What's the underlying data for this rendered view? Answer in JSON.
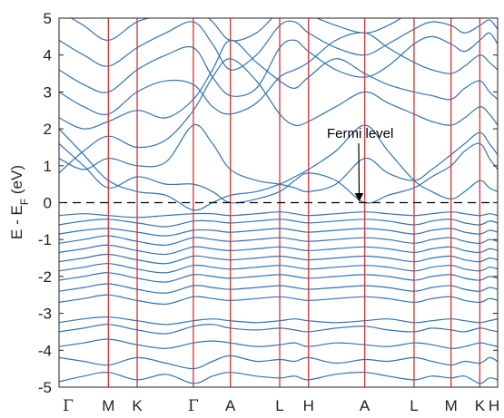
{
  "chart_data": {
    "type": "line",
    "title": "",
    "ylabel": {
      "main": "E - E",
      "subscript": "F",
      "units": " (eV)"
    },
    "ylim": [
      -5,
      5
    ],
    "yticks": [
      5,
      4,
      3,
      2,
      1,
      0,
      -1,
      -2,
      -3,
      -4,
      -5
    ],
    "xlim": [
      0,
      16
    ],
    "kpoints": [
      {
        "label": "Γ",
        "x": 0
      },
      {
        "label": "M",
        "x": 1.8
      },
      {
        "label": "K",
        "x": 2.85
      },
      {
        "label": "Γ",
        "x": 4.9
      },
      {
        "label": "A",
        "x": 6.25
      },
      {
        "label": "L",
        "x": 8.05
      },
      {
        "label": "H",
        "x": 9.1
      },
      {
        "label": "A",
        "x": 11.15
      },
      {
        "label": "L",
        "x": 12.95
      },
      {
        "label": "M",
        "x": 14.3
      },
      {
        "label": "K",
        "x": 15.35
      },
      {
        "label": "H",
        "x": 16
      }
    ],
    "fermi_level": 0,
    "annotation": {
      "text": "Fermi level",
      "arrow_to": {
        "x": 10.95,
        "y": 0.05
      }
    },
    "colors": {
      "bands": "#2f74b5",
      "kpath_lines": "#e03030",
      "fermi_line": "#000000"
    },
    "bands": [
      {
        "x": [
          0,
          0.9,
          1.8,
          2.85,
          3.9,
          4.9,
          5.6,
          6.25,
          7.2,
          8.05,
          8.6,
          9.1,
          10.1,
          11.15,
          12.0,
          12.95,
          13.6,
          14.3,
          14.8,
          15.35,
          15.7,
          16
        ],
        "y": [
          -4.85,
          -4.7,
          -4.6,
          -4.8,
          -4.65,
          -4.9,
          -4.7,
          -4.6,
          -4.7,
          -4.75,
          -4.7,
          -4.8,
          -4.65,
          -4.6,
          -4.7,
          -4.8,
          -4.7,
          -4.75,
          -4.7,
          -4.9,
          -4.75,
          -4.8
        ]
      },
      {
        "x": [
          0,
          0.9,
          1.8,
          2.85,
          3.9,
          4.9,
          5.6,
          6.25,
          7.2,
          8.05,
          8.6,
          9.1,
          10.1,
          11.15,
          12.0,
          12.95,
          13.6,
          14.3,
          14.8,
          15.35,
          15.7,
          16
        ],
        "y": [
          -4.2,
          -4.3,
          -4.4,
          -4.2,
          -4.35,
          -4.5,
          -4.3,
          -4.15,
          -4.3,
          -4.25,
          -4.3,
          -4.2,
          -4.35,
          -4.25,
          -4.3,
          -4.2,
          -4.3,
          -4.4,
          -4.3,
          -4.35,
          -4.2,
          -4.3
        ]
      },
      {
        "x": [
          0,
          0.9,
          1.8,
          2.85,
          3.9,
          4.9,
          5.6,
          6.25,
          7.2,
          8.05,
          8.6,
          9.1,
          10.1,
          11.15,
          12.0,
          12.95,
          13.6,
          14.3,
          14.8,
          15.35,
          15.7,
          16
        ],
        "y": [
          -3.9,
          -3.8,
          -3.7,
          -3.85,
          -3.95,
          -3.8,
          -3.75,
          -3.8,
          -3.9,
          -3.85,
          -3.8,
          -3.9,
          -3.8,
          -3.85,
          -3.9,
          -3.8,
          -3.85,
          -3.95,
          -3.9,
          -3.8,
          -3.85,
          -3.9
        ]
      },
      {
        "x": [
          0,
          0.9,
          1.8,
          2.85,
          3.9,
          4.9,
          5.6,
          6.25,
          7.2,
          8.05,
          8.6,
          9.1,
          10.1,
          11.15,
          12.0,
          12.95,
          13.6,
          14.3,
          14.8,
          15.35,
          15.7,
          16
        ],
        "y": [
          -3.5,
          -3.4,
          -3.3,
          -3.45,
          -3.55,
          -3.35,
          -3.3,
          -3.4,
          -3.45,
          -3.4,
          -3.45,
          -3.5,
          -3.4,
          -3.35,
          -3.45,
          -3.5,
          -3.4,
          -3.45,
          -3.5,
          -3.4,
          -3.45,
          -3.5
        ]
      },
      {
        "x": [
          0,
          0.9,
          1.8,
          2.85,
          3.9,
          4.9,
          5.6,
          6.25,
          7.2,
          8.05,
          8.6,
          9.1,
          10.1,
          11.15,
          12.0,
          12.95,
          13.6,
          14.3,
          14.8,
          15.35,
          15.7,
          16
        ],
        "y": [
          -3.25,
          -3.15,
          -3.1,
          -3.2,
          -3.3,
          -3.2,
          -3.15,
          -3.2,
          -3.25,
          -3.2,
          -3.15,
          -3.2,
          -3.25,
          -3.2,
          -3.15,
          -3.25,
          -3.2,
          -3.15,
          -3.2,
          -3.25,
          -3.2,
          -3.15
        ]
      },
      {
        "x": [
          0,
          0.9,
          1.8,
          2.85,
          3.9,
          4.9,
          5.6,
          6.25,
          7.2,
          8.05,
          8.6,
          9.1,
          10.1,
          11.15,
          12.0,
          12.95,
          13.6,
          14.3,
          14.8,
          15.35,
          15.7,
          16
        ],
        "y": [
          -2.7,
          -2.6,
          -2.5,
          -2.65,
          -2.75,
          -2.55,
          -2.6,
          -2.65,
          -2.6,
          -2.55,
          -2.6,
          -2.65,
          -2.6,
          -2.55,
          -2.6,
          -2.7,
          -2.6,
          -2.55,
          -2.65,
          -2.7,
          -2.6,
          -2.65
        ]
      },
      {
        "x": [
          0,
          0.9,
          1.8,
          2.85,
          3.9,
          4.9,
          5.6,
          6.25,
          7.2,
          8.05,
          8.6,
          9.1,
          10.1,
          11.15,
          12.0,
          12.95,
          13.6,
          14.3,
          14.8,
          15.35,
          15.7,
          16
        ],
        "y": [
          -2.4,
          -2.3,
          -2.2,
          -2.35,
          -2.45,
          -2.25,
          -2.3,
          -2.35,
          -2.3,
          -2.25,
          -2.3,
          -2.35,
          -2.3,
          -2.25,
          -2.3,
          -2.4,
          -2.3,
          -2.25,
          -2.35,
          -2.4,
          -2.3,
          -2.35
        ]
      },
      {
        "x": [
          0,
          0.9,
          1.8,
          2.85,
          3.9,
          4.9,
          5.6,
          6.25,
          7.2,
          8.05,
          8.6,
          9.1,
          10.1,
          11.15,
          12.0,
          12.95,
          13.6,
          14.3,
          14.8,
          15.35,
          15.7,
          16
        ],
        "y": [
          -2.1,
          -2.0,
          -1.9,
          -2.05,
          -2.15,
          -1.95,
          -2.0,
          -2.05,
          -2.0,
          -1.95,
          -2.0,
          -2.05,
          -2.0,
          -1.95,
          -2.0,
          -2.1,
          -2.0,
          -1.95,
          -2.05,
          -2.1,
          -2.0,
          -2.05
        ]
      },
      {
        "x": [
          0,
          0.9,
          1.8,
          2.85,
          3.9,
          4.9,
          5.6,
          6.25,
          7.2,
          8.05,
          8.6,
          9.1,
          10.1,
          11.15,
          12.0,
          12.95,
          13.6,
          14.3,
          14.8,
          15.35,
          15.7,
          16
        ],
        "y": [
          -1.85,
          -1.75,
          -1.65,
          -1.8,
          -1.9,
          -1.7,
          -1.75,
          -1.8,
          -1.75,
          -1.7,
          -1.75,
          -1.8,
          -1.75,
          -1.7,
          -1.75,
          -1.85,
          -1.75,
          -1.7,
          -1.8,
          -1.85,
          -1.75,
          -1.8
        ]
      },
      {
        "x": [
          0,
          0.9,
          1.8,
          2.85,
          3.9,
          4.9,
          5.6,
          6.25,
          7.2,
          8.05,
          8.6,
          9.1,
          10.1,
          11.15,
          12.0,
          12.95,
          13.6,
          14.3,
          14.8,
          15.35,
          15.7,
          16
        ],
        "y": [
          -1.6,
          -1.5,
          -1.4,
          -1.55,
          -1.65,
          -1.45,
          -1.5,
          -1.55,
          -1.5,
          -1.45,
          -1.5,
          -1.55,
          -1.5,
          -1.45,
          -1.5,
          -1.6,
          -1.5,
          -1.45,
          -1.55,
          -1.6,
          -1.5,
          -1.55
        ]
      },
      {
        "x": [
          0,
          0.9,
          1.8,
          2.85,
          3.9,
          4.9,
          5.6,
          6.25,
          7.2,
          8.05,
          8.6,
          9.1,
          10.1,
          11.15,
          12.0,
          12.95,
          13.6,
          14.3,
          14.8,
          15.35,
          15.7,
          16
        ],
        "y": [
          -1.35,
          -1.25,
          -1.15,
          -1.3,
          -1.4,
          -1.2,
          -1.25,
          -1.3,
          -1.25,
          -1.2,
          -1.25,
          -1.3,
          -1.25,
          -1.2,
          -1.25,
          -1.35,
          -1.25,
          -1.2,
          -1.3,
          -1.35,
          -1.25,
          -1.3
        ]
      },
      {
        "x": [
          0,
          0.9,
          1.8,
          2.85,
          3.9,
          4.9,
          5.6,
          6.25,
          7.2,
          8.05,
          8.6,
          9.1,
          10.1,
          11.15,
          12.0,
          12.95,
          13.6,
          14.3,
          14.8,
          15.35,
          15.7,
          16
        ],
        "y": [
          -1.1,
          -1.0,
          -0.9,
          -1.05,
          -1.15,
          -0.95,
          -1.0,
          -1.05,
          -1.0,
          -0.95,
          -1.0,
          -1.05,
          -1.0,
          -0.95,
          -1.0,
          -1.1,
          -1.0,
          -0.95,
          -1.05,
          -1.1,
          -1.0,
          -1.05
        ]
      },
      {
        "x": [
          0,
          0.9,
          1.8,
          2.85,
          3.9,
          4.9,
          5.6,
          6.25,
          7.2,
          8.05,
          8.6,
          9.1,
          10.1,
          11.15,
          12.0,
          12.95,
          13.6,
          14.3,
          14.8,
          15.35,
          15.7,
          16
        ],
        "y": [
          -0.85,
          -0.75,
          -0.7,
          -0.8,
          -0.9,
          -0.75,
          -0.75,
          -0.8,
          -0.75,
          -0.7,
          -0.75,
          -0.8,
          -0.75,
          -0.7,
          -0.75,
          -0.85,
          -0.75,
          -0.7,
          -0.8,
          -0.85,
          -0.75,
          -0.8
        ]
      },
      {
        "x": [
          0,
          0.9,
          1.8,
          2.85,
          3.9,
          4.9,
          5.6,
          6.25,
          7.2,
          8.05,
          8.6,
          9.1,
          10.1,
          11.15,
          12.0,
          12.95,
          13.6,
          14.3,
          14.8,
          15.35,
          15.7,
          16
        ],
        "y": [
          -0.6,
          -0.5,
          -0.45,
          -0.55,
          -0.65,
          -0.5,
          -0.5,
          -0.55,
          -0.5,
          -0.45,
          -0.5,
          -0.55,
          -0.5,
          -0.45,
          -0.5,
          -0.6,
          -0.5,
          -0.45,
          -0.55,
          -0.6,
          -0.5,
          -0.55
        ]
      },
      {
        "x": [
          0,
          0.9,
          1.8,
          2.85,
          3.9,
          4.9,
          5.6,
          6.25,
          7.2,
          8.05,
          8.6,
          9.1,
          10.1,
          11.15,
          12.0,
          12.95,
          13.6,
          14.3,
          14.8,
          15.35,
          15.7,
          16
        ],
        "y": [
          -0.35,
          -0.3,
          -0.35,
          -0.4,
          -0.35,
          -0.3,
          -0.3,
          -0.35,
          -0.3,
          -0.25,
          -0.3,
          -0.35,
          -0.3,
          -0.25,
          -0.3,
          -0.35,
          -0.3,
          -0.25,
          -0.3,
          -0.35,
          -0.3,
          -0.35
        ]
      },
      {
        "x": [
          0,
          0.9,
          1.8,
          2.85,
          3.9,
          4.9,
          5.6,
          6.25,
          7.2,
          8.05,
          8.6,
          9.1,
          10.1,
          11.15,
          12.0,
          12.95,
          13.6,
          14.3,
          14.8,
          15.35,
          15.7,
          16
        ],
        "y": [
          2.0,
          1.3,
          0.6,
          0.3,
          0.2,
          -0.2,
          0.0,
          0.2,
          0.3,
          0.5,
          0.7,
          0.9,
          1.4,
          2.1,
          1.4,
          0.6,
          0.3,
          0.1,
          0.3,
          0.6,
          0.4,
          0.3
        ]
      },
      {
        "x": [
          0,
          0.9,
          1.8,
          2.85,
          3.9,
          4.9,
          5.6,
          6.25,
          7.2,
          8.05,
          8.6,
          9.1,
          10.1,
          11.15,
          12.0,
          12.95,
          13.6,
          14.3,
          14.8,
          15.35,
          15.7,
          16
        ],
        "y": [
          1.6,
          1.0,
          0.4,
          0.7,
          0.5,
          0.5,
          0.3,
          0.0,
          0.1,
          0.3,
          0.6,
          0.8,
          0.6,
          0.0,
          0.2,
          0.4,
          0.7,
          1.0,
          1.4,
          1.6,
          1.2,
          0.9
        ]
      },
      {
        "x": [
          0,
          0.9,
          1.8,
          2.85,
          3.9,
          4.9,
          5.6,
          6.25,
          7.2,
          8.05,
          8.6,
          9.1,
          10.1,
          11.15,
          12.0,
          12.95,
          13.6,
          14.3,
          14.8,
          15.35,
          15.7,
          16
        ],
        "y": [
          1.2,
          0.9,
          1.2,
          1.0,
          1.1,
          2.1,
          1.6,
          0.9,
          0.6,
          0.5,
          0.4,
          0.3,
          0.5,
          1.2,
          0.8,
          0.6,
          0.9,
          1.3,
          1.6,
          1.9,
          1.6,
          1.3
        ]
      },
      {
        "x": [
          0,
          0.9,
          1.8,
          2.85,
          3.9,
          4.9,
          5.6,
          6.25,
          7.2,
          8.05,
          8.6,
          9.1,
          10.1,
          11.15,
          12.0,
          12.95,
          13.6,
          14.3,
          14.8,
          15.35,
          15.7,
          16
        ],
        "y": [
          0.8,
          1.4,
          1.8,
          1.5,
          1.7,
          2.5,
          3.4,
          3.9,
          3.3,
          2.4,
          2.1,
          2.2,
          2.6,
          3.0,
          2.7,
          2.4,
          2.2,
          2.1,
          2.3,
          2.6,
          2.4,
          2.1
        ]
      },
      {
        "x": [
          0,
          0.9,
          1.8,
          2.85,
          3.9,
          4.9,
          5.6,
          6.25,
          7.2,
          8.05,
          8.6,
          9.1,
          10.1,
          11.15,
          12.0,
          12.95,
          13.6,
          14.3,
          14.8,
          15.35,
          15.7,
          16
        ],
        "y": [
          2.3,
          2.0,
          2.2,
          2.5,
          2.3,
          2.8,
          3.6,
          4.4,
          3.8,
          3.3,
          3.1,
          3.4,
          3.9,
          3.5,
          3.2,
          3.0,
          2.9,
          2.8,
          3.1,
          3.3,
          3.0,
          2.8
        ]
      },
      {
        "x": [
          0,
          0.9,
          1.8,
          2.85,
          3.9,
          4.9,
          5.6,
          6.25,
          7.2,
          8.05,
          8.6,
          9.1,
          10.1,
          11.15,
          12.0,
          12.95,
          13.6,
          14.3,
          14.8,
          15.35,
          15.7,
          16
        ],
        "y": [
          3.0,
          2.6,
          2.4,
          3.0,
          3.3,
          3.2,
          2.6,
          2.4,
          2.7,
          3.4,
          3.6,
          3.8,
          4.4,
          4.6,
          4.2,
          3.8,
          3.6,
          3.5,
          3.7,
          4.0,
          3.8,
          3.6
        ]
      },
      {
        "x": [
          0,
          0.9,
          1.8,
          2.85,
          3.9,
          4.9,
          5.6,
          6.25,
          7.2,
          8.05,
          8.6,
          9.1,
          10.1,
          11.15,
          12.0,
          12.95,
          13.6,
          14.3,
          14.8,
          15.35,
          15.7,
          16
        ],
        "y": [
          3.6,
          3.2,
          3.0,
          3.6,
          4.0,
          4.2,
          3.4,
          2.9,
          3.1,
          4.2,
          4.4,
          4.1,
          3.6,
          3.4,
          3.7,
          4.3,
          4.5,
          4.3,
          4.1,
          4.4,
          4.6,
          4.3
        ]
      },
      {
        "x": [
          0,
          0.9,
          1.8,
          2.85,
          3.9,
          4.9,
          5.6,
          6.25,
          7.2,
          8.05,
          8.6,
          9.1,
          10.1,
          11.15,
          12.0,
          12.95,
          13.6,
          14.3,
          14.8,
          15.35,
          15.7,
          16
        ],
        "y": [
          4.4,
          4.0,
          3.7,
          4.2,
          4.6,
          4.9,
          4.3,
          3.6,
          4.0,
          4.8,
          4.9,
          4.6,
          4.2,
          4.0,
          4.3,
          4.7,
          4.9,
          4.8,
          4.6,
          4.8,
          4.95,
          4.7
        ]
      },
      {
        "x": [
          0,
          0.9,
          1.8,
          2.85,
          3.9,
          4.9,
          5.6,
          6.25,
          7.2,
          8.05,
          8.6,
          9.1,
          10.1,
          11.15,
          12.0,
          12.95,
          13.6,
          14.3,
          14.8,
          15.35,
          15.7,
          16
        ],
        "y": [
          5.2,
          4.8,
          4.4,
          4.9,
          5.1,
          5.3,
          4.9,
          4.4,
          4.6,
          5.2,
          5.3,
          5.1,
          4.8,
          4.6,
          4.8,
          5.2,
          5.3,
          5.2,
          5.1,
          5.2,
          5.3,
          5.1
        ]
      }
    ]
  }
}
